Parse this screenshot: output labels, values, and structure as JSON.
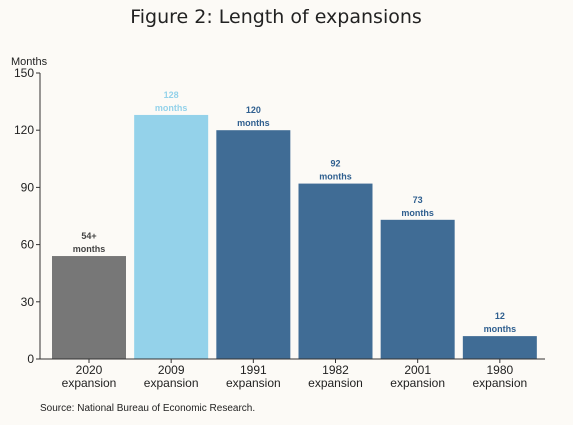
{
  "chart_data": {
    "type": "bar",
    "title": "Figure 2: Length of expansions",
    "ylabel": "Months",
    "ylim": [
      0,
      150
    ],
    "yticks": [
      0,
      30,
      60,
      90,
      120,
      150
    ],
    "grid": false,
    "categories": [
      [
        "2020",
        "expansion"
      ],
      [
        "2009",
        "expansion"
      ],
      [
        "1991",
        "expansion"
      ],
      [
        "1982",
        "expansion"
      ],
      [
        "2001",
        "expansion"
      ],
      [
        "1980",
        "expansion"
      ]
    ],
    "values": [
      54,
      128,
      120,
      92,
      73,
      12
    ],
    "data_labels": [
      [
        "54+",
        "months"
      ],
      [
        "128",
        "months"
      ],
      [
        "120",
        "months"
      ],
      [
        "92",
        "months"
      ],
      [
        "73",
        "months"
      ],
      [
        "12",
        "months"
      ]
    ],
    "colors": [
      "#777777",
      "#94d2ea",
      "#406c95",
      "#406c95",
      "#406c95",
      "#406c95"
    ],
    "label_colors": [
      "#444444",
      "#94d2ea",
      "#2f5f8f",
      "#2f5f8f",
      "#2f5f8f",
      "#2f5f8f"
    ],
    "source": "Source: National Bureau of Economic Research."
  }
}
